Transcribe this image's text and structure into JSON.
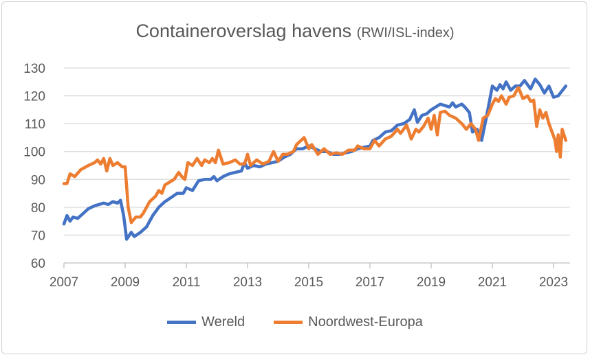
{
  "chart_data": {
    "type": "line",
    "title": "Containeroverslag havens",
    "subtitle": "(RWI/ISL-index)",
    "xlabel": "",
    "ylabel": "",
    "xlim": [
      2007,
      2023.4
    ],
    "ylim": [
      60,
      130
    ],
    "x_ticks": [
      "2007",
      "2009",
      "2011",
      "2013",
      "2015",
      "2017",
      "2019",
      "2021",
      "2023"
    ],
    "y_ticks": [
      "60",
      "70",
      "80",
      "90",
      "100",
      "110",
      "120",
      "130"
    ],
    "grid": true,
    "legend_position": "bottom",
    "series": [
      {
        "name": "Wereld",
        "color": "#4472C4",
        "points": [
          [
            2007.0,
            74
          ],
          [
            2007.1,
            77
          ],
          [
            2007.2,
            75
          ],
          [
            2007.3,
            76.5
          ],
          [
            2007.45,
            76
          ],
          [
            2007.6,
            77.5
          ],
          [
            2007.8,
            79.5
          ],
          [
            2008.0,
            80.5
          ],
          [
            2008.3,
            81.5
          ],
          [
            2008.45,
            81
          ],
          [
            2008.6,
            82
          ],
          [
            2008.75,
            81.5
          ],
          [
            2008.85,
            82.5
          ],
          [
            2008.95,
            77
          ],
          [
            2009.05,
            68.5
          ],
          [
            2009.2,
            71
          ],
          [
            2009.3,
            69.5
          ],
          [
            2009.5,
            71
          ],
          [
            2009.7,
            73
          ],
          [
            2009.9,
            77
          ],
          [
            2010.1,
            80
          ],
          [
            2010.3,
            82
          ],
          [
            2010.5,
            83.5
          ],
          [
            2010.7,
            85
          ],
          [
            2010.9,
            85
          ],
          [
            2011.0,
            87
          ],
          [
            2011.2,
            86
          ],
          [
            2011.4,
            89.5
          ],
          [
            2011.6,
            90
          ],
          [
            2011.8,
            90
          ],
          [
            2011.9,
            91
          ],
          [
            2012.0,
            89.5
          ],
          [
            2012.2,
            91
          ],
          [
            2012.4,
            92
          ],
          [
            2012.6,
            92.5
          ],
          [
            2012.8,
            93
          ],
          [
            2012.9,
            96
          ],
          [
            2013.0,
            94
          ],
          [
            2013.2,
            95
          ],
          [
            2013.4,
            94.5
          ],
          [
            2013.6,
            95.5
          ],
          [
            2013.8,
            96
          ],
          [
            2014.0,
            96.5
          ],
          [
            2014.2,
            98
          ],
          [
            2014.4,
            99
          ],
          [
            2014.6,
            101
          ],
          [
            2014.8,
            101
          ],
          [
            2015.0,
            102
          ],
          [
            2015.2,
            101
          ],
          [
            2015.4,
            100
          ],
          [
            2015.6,
            100
          ],
          [
            2015.8,
            99
          ],
          [
            2016.0,
            99
          ],
          [
            2016.2,
            99.5
          ],
          [
            2016.4,
            100
          ],
          [
            2016.6,
            101
          ],
          [
            2016.8,
            101.5
          ],
          [
            2017.0,
            102
          ],
          [
            2017.1,
            104
          ],
          [
            2017.3,
            105
          ],
          [
            2017.5,
            107
          ],
          [
            2017.7,
            107.5
          ],
          [
            2017.9,
            109.5
          ],
          [
            2018.1,
            110
          ],
          [
            2018.3,
            111.5
          ],
          [
            2018.45,
            115
          ],
          [
            2018.55,
            110.5
          ],
          [
            2018.7,
            113
          ],
          [
            2018.85,
            113.5
          ],
          [
            2019.0,
            115
          ],
          [
            2019.15,
            116
          ],
          [
            2019.3,
            117
          ],
          [
            2019.45,
            116.5
          ],
          [
            2019.6,
            116
          ],
          [
            2019.7,
            117.5
          ],
          [
            2019.8,
            116
          ],
          [
            2020.0,
            117
          ],
          [
            2020.1,
            116
          ],
          [
            2020.25,
            114
          ],
          [
            2020.35,
            107
          ],
          [
            2020.5,
            108
          ],
          [
            2020.65,
            104
          ],
          [
            2020.8,
            112
          ],
          [
            2021.0,
            123.5
          ],
          [
            2021.15,
            122
          ],
          [
            2021.25,
            124
          ],
          [
            2021.35,
            122.5
          ],
          [
            2021.45,
            125
          ],
          [
            2021.6,
            122
          ],
          [
            2021.75,
            123.5
          ],
          [
            2021.9,
            123.5
          ],
          [
            2022.05,
            125.5
          ],
          [
            2022.25,
            122.5
          ],
          [
            2022.4,
            126
          ],
          [
            2022.55,
            124
          ],
          [
            2022.7,
            121
          ],
          [
            2022.85,
            123.5
          ],
          [
            2023.0,
            119.5
          ],
          [
            2023.15,
            120
          ],
          [
            2023.4,
            123.5
          ]
        ]
      },
      {
        "name": "Noordwest-Europa",
        "color": "#ED7D31",
        "points": [
          [
            2007.0,
            88.5
          ],
          [
            2007.1,
            88.5
          ],
          [
            2007.2,
            92
          ],
          [
            2007.35,
            91
          ],
          [
            2007.55,
            93.5
          ],
          [
            2007.8,
            95
          ],
          [
            2008.0,
            96
          ],
          [
            2008.1,
            97
          ],
          [
            2008.2,
            95.5
          ],
          [
            2008.3,
            97.5
          ],
          [
            2008.4,
            93
          ],
          [
            2008.5,
            97.5
          ],
          [
            2008.6,
            95
          ],
          [
            2008.75,
            96
          ],
          [
            2008.9,
            94.5
          ],
          [
            2009.0,
            94.5
          ],
          [
            2009.1,
            80
          ],
          [
            2009.2,
            74.5
          ],
          [
            2009.35,
            76.5
          ],
          [
            2009.5,
            76.5
          ],
          [
            2009.6,
            78
          ],
          [
            2009.8,
            82
          ],
          [
            2010.0,
            84
          ],
          [
            2010.1,
            86
          ],
          [
            2010.2,
            85
          ],
          [
            2010.3,
            88
          ],
          [
            2010.45,
            89
          ],
          [
            2010.6,
            90
          ],
          [
            2010.75,
            92.5
          ],
          [
            2010.85,
            91
          ],
          [
            2010.95,
            90
          ],
          [
            2011.05,
            96
          ],
          [
            2011.2,
            95
          ],
          [
            2011.35,
            97.5
          ],
          [
            2011.5,
            95
          ],
          [
            2011.6,
            97
          ],
          [
            2011.75,
            96
          ],
          [
            2011.85,
            97.5
          ],
          [
            2011.95,
            96
          ],
          [
            2012.05,
            100.5
          ],
          [
            2012.2,
            95.5
          ],
          [
            2012.4,
            96
          ],
          [
            2012.6,
            97
          ],
          [
            2012.75,
            95.5
          ],
          [
            2012.9,
            95.5
          ],
          [
            2013.0,
            99
          ],
          [
            2013.1,
            95
          ],
          [
            2013.3,
            97
          ],
          [
            2013.5,
            95.5
          ],
          [
            2013.7,
            96.5
          ],
          [
            2013.85,
            100
          ],
          [
            2014.0,
            96.5
          ],
          [
            2014.15,
            99
          ],
          [
            2014.3,
            99
          ],
          [
            2014.5,
            100
          ],
          [
            2014.6,
            102.5
          ],
          [
            2014.85,
            105
          ],
          [
            2015.0,
            101
          ],
          [
            2015.1,
            102.5
          ],
          [
            2015.3,
            99
          ],
          [
            2015.5,
            101
          ],
          [
            2015.7,
            99
          ],
          [
            2015.9,
            99.5
          ],
          [
            2016.1,
            99
          ],
          [
            2016.3,
            100.5
          ],
          [
            2016.5,
            100.5
          ],
          [
            2016.6,
            102
          ],
          [
            2016.8,
            101
          ],
          [
            2017.0,
            101
          ],
          [
            2017.15,
            104
          ],
          [
            2017.3,
            102
          ],
          [
            2017.5,
            104.5
          ],
          [
            2017.7,
            105.5
          ],
          [
            2017.9,
            108
          ],
          [
            2018.0,
            106.5
          ],
          [
            2018.2,
            109.5
          ],
          [
            2018.35,
            104.5
          ],
          [
            2018.5,
            108
          ],
          [
            2018.6,
            107
          ],
          [
            2018.75,
            109
          ],
          [
            2018.9,
            112
          ],
          [
            2019.0,
            108
          ],
          [
            2019.1,
            113
          ],
          [
            2019.2,
            106
          ],
          [
            2019.3,
            114
          ],
          [
            2019.45,
            114.5
          ],
          [
            2019.6,
            113
          ],
          [
            2019.8,
            112
          ],
          [
            2020.0,
            110
          ],
          [
            2020.15,
            108
          ],
          [
            2020.3,
            110
          ],
          [
            2020.45,
            108
          ],
          [
            2020.55,
            104
          ],
          [
            2020.7,
            112
          ],
          [
            2020.85,
            113
          ],
          [
            2021.0,
            117
          ],
          [
            2021.1,
            119
          ],
          [
            2021.2,
            118
          ],
          [
            2021.3,
            120
          ],
          [
            2021.45,
            117
          ],
          [
            2021.55,
            119.5
          ],
          [
            2021.7,
            120
          ],
          [
            2021.85,
            123
          ],
          [
            2022.0,
            119
          ],
          [
            2022.15,
            120
          ],
          [
            2022.25,
            118
          ],
          [
            2022.35,
            118.5
          ],
          [
            2022.45,
            109
          ],
          [
            2022.55,
            115
          ],
          [
            2022.65,
            112
          ],
          [
            2022.75,
            114
          ],
          [
            2022.85,
            110
          ],
          [
            2022.95,
            107
          ],
          [
            2023.05,
            104
          ],
          [
            2023.1,
            100
          ],
          [
            2023.15,
            106
          ],
          [
            2023.22,
            98
          ],
          [
            2023.28,
            108
          ],
          [
            2023.4,
            104
          ]
        ]
      }
    ]
  }
}
